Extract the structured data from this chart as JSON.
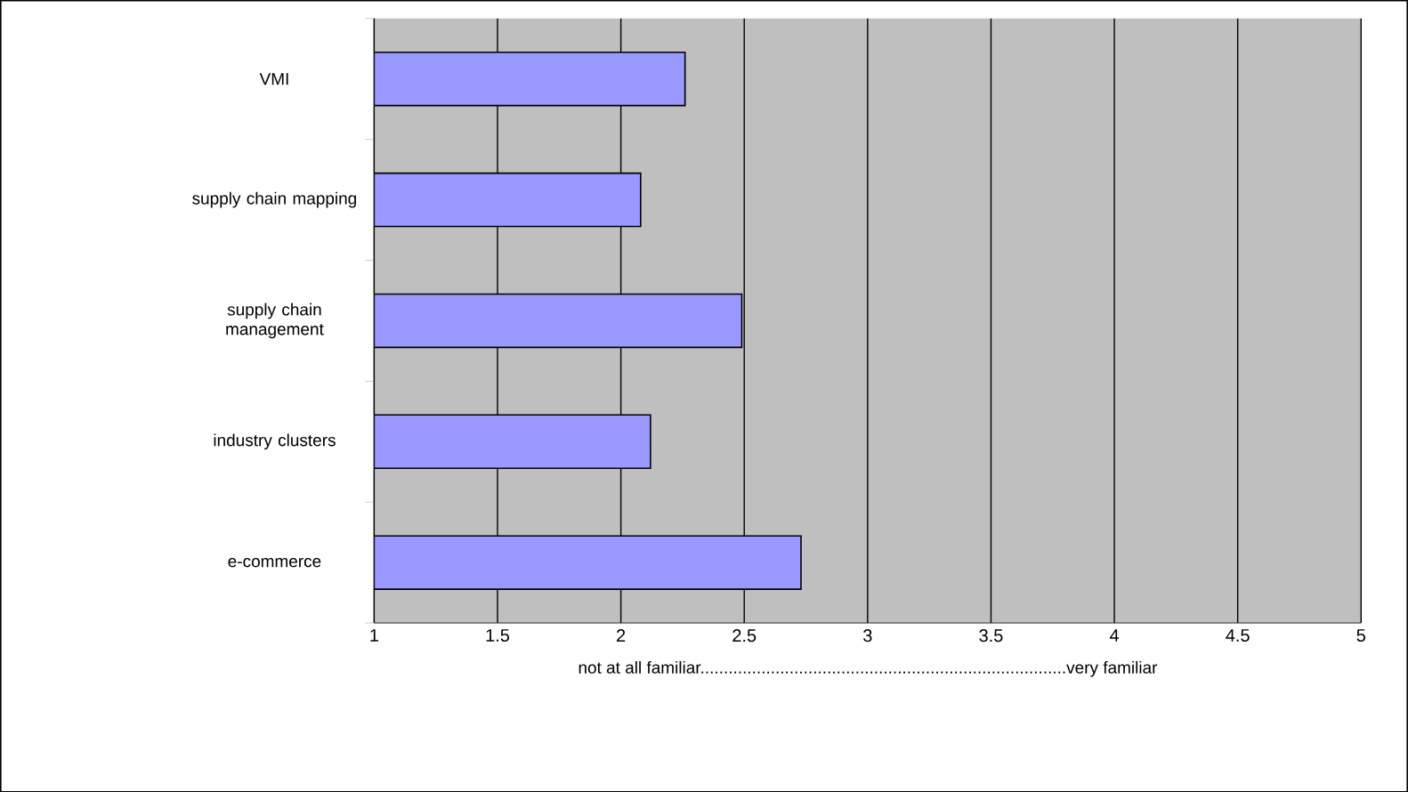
{
  "chart_data": {
    "type": "bar",
    "orientation": "horizontal",
    "categories": [
      "VMI",
      "supply chain mapping",
      "supply chain management",
      "industry clusters",
      "e-commerce"
    ],
    "values": [
      2.26,
      2.08,
      2.49,
      2.12,
      2.73
    ],
    "color": "#9999ff",
    "xlim": [
      1,
      5
    ],
    "xticks": [
      1,
      1.5,
      2,
      2.5,
      3,
      3.5,
      4,
      4.5,
      5
    ],
    "xlabel": "not at all familiar..............................................................................very familiar",
    "grid": "x"
  }
}
